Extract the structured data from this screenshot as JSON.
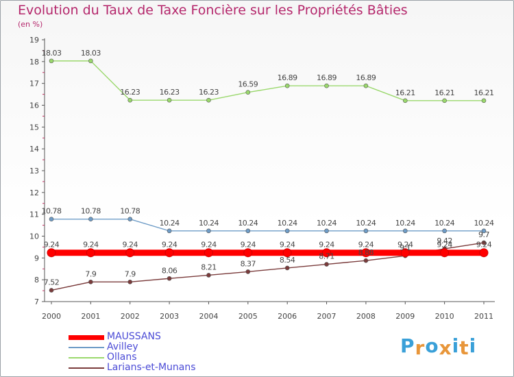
{
  "chart_data": {
    "type": "line",
    "title": "Evolution du Taux de Taxe Foncière sur les Propriétés Bâties",
    "subtitle": "(en %)",
    "xlabel": "",
    "ylabel": "",
    "ylim": [
      7,
      19
    ],
    "yticks": [
      "7",
      "8",
      "9",
      "10",
      "11",
      "12",
      "13",
      "14",
      "15",
      "16",
      "17",
      "18",
      "19"
    ],
    "categories": [
      "2000",
      "2001",
      "2002",
      "2003",
      "2004",
      "2005",
      "2006",
      "2007",
      "2008",
      "2009",
      "2010",
      "2011"
    ],
    "series": [
      {
        "name": "MAUSSANS",
        "color": "#ff0000",
        "values": [
          9.24,
          9.24,
          9.24,
          9.24,
          9.24,
          9.24,
          9.24,
          9.24,
          9.24,
          9.24,
          9.24,
          9.24
        ],
        "labels": [
          "9.24",
          "9.24",
          "9.24",
          "9.24",
          "9.24",
          "9.24",
          "9.24",
          "9.24",
          "9.24",
          "9.24",
          "9.24",
          "9.24"
        ]
      },
      {
        "name": "Avilley",
        "color": "#6e9cc7",
        "values": [
          10.78,
          10.78,
          10.78,
          10.24,
          10.24,
          10.24,
          10.24,
          10.24,
          10.24,
          10.24,
          10.24,
          10.24
        ],
        "labels": [
          "10.78",
          "10.78",
          "10.78",
          "10.24",
          "10.24",
          "10.24",
          "10.24",
          "10.24",
          "10.24",
          "10.24",
          "10.24",
          "10.24"
        ]
      },
      {
        "name": "Ollans",
        "color": "#9ad86c",
        "values": [
          18.03,
          18.03,
          16.23,
          16.23,
          16.23,
          16.59,
          16.89,
          16.89,
          16.89,
          16.21,
          16.21,
          16.21
        ],
        "labels": [
          "18.03",
          "18.03",
          "16.23",
          "16.23",
          "16.23",
          "16.59",
          "16.89",
          "16.89",
          "16.89",
          "16.21",
          "16.21",
          "16.21"
        ]
      },
      {
        "name": "Larians-et-Munans",
        "color": "#7a3b3b",
        "values": [
          7.52,
          7.9,
          7.9,
          8.06,
          8.21,
          8.37,
          8.54,
          8.71,
          8.88,
          9.1,
          9.42,
          9.7
        ],
        "labels": [
          "7.52",
          "7.9",
          "7.9",
          "8.06",
          "8.21",
          "8.37",
          "8.54",
          "8.71",
          "8.88",
          "9.1",
          "9.42",
          "9.7"
        ]
      }
    ],
    "legend": {
      "position": "bottom-left"
    }
  },
  "logo": {
    "letters": [
      "P",
      "r",
      "o",
      "x",
      "i",
      "t",
      "i"
    ],
    "colors": [
      "#3aa0d8",
      "#e8963a",
      "#3aa0d8",
      "#e8963a",
      "#3aa0d8",
      "#e8963a",
      "#3aa0d8"
    ]
  }
}
